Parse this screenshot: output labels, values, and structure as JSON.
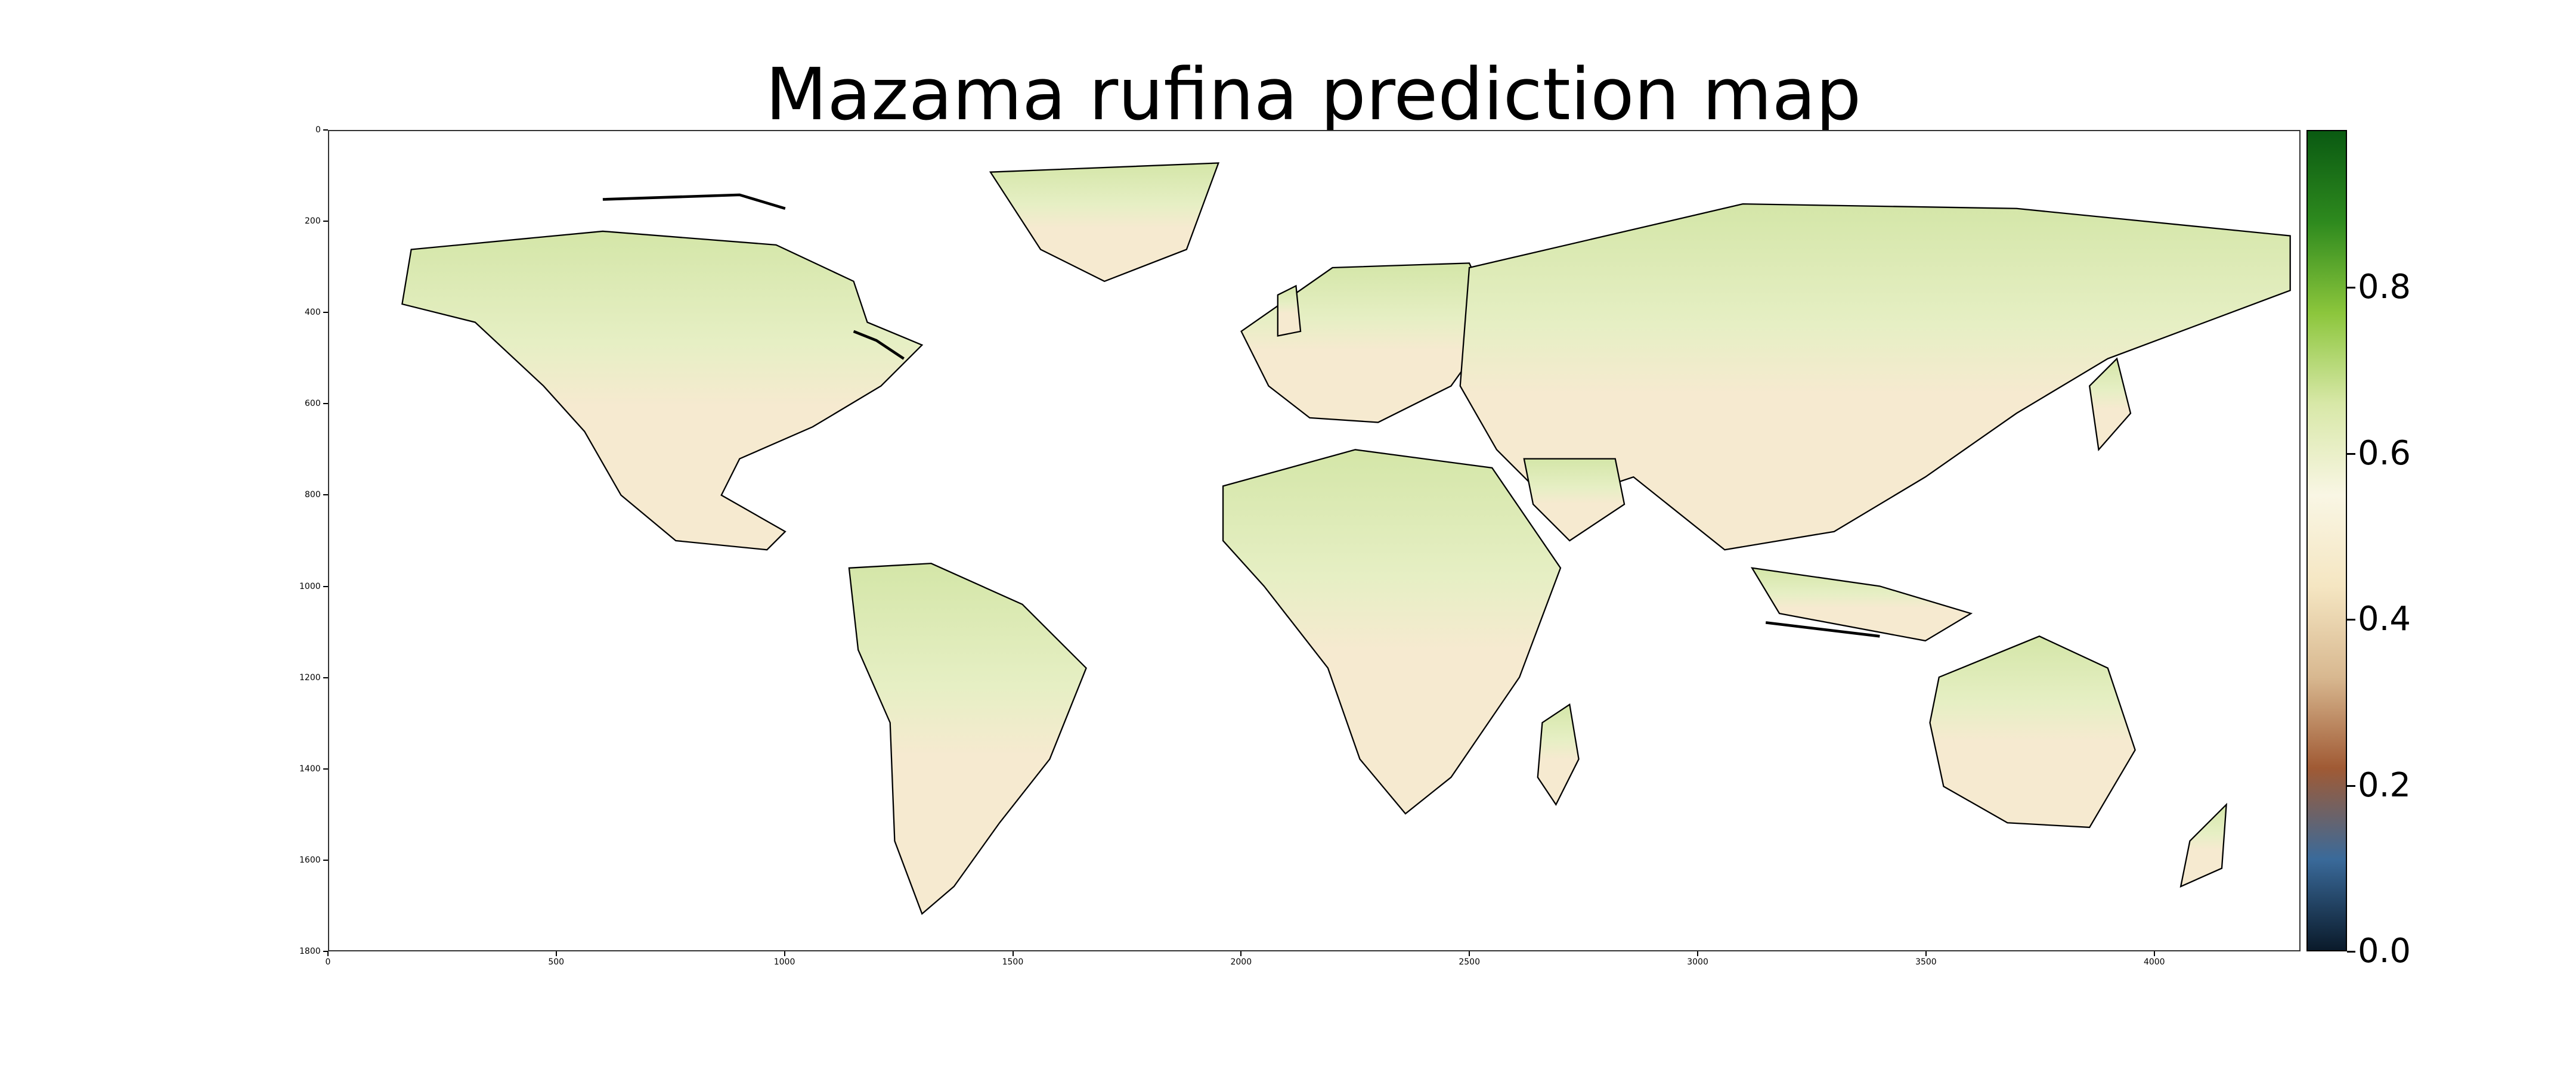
{
  "title": "Mazama rufina prediction map",
  "map": {
    "x_ticks": [
      "0",
      "500",
      "1000",
      "1500",
      "2000",
      "2500",
      "3000",
      "3500",
      "4000"
    ],
    "y_ticks": [
      "0",
      "200",
      "400",
      "600",
      "800",
      "1000",
      "1200",
      "1400",
      "1600",
      "1800"
    ],
    "x_range": [
      0,
      4320
    ],
    "y_range": [
      0,
      1800
    ],
    "land_color": "#f6ead0",
    "coast_color": "#000000",
    "ocean_color": "#ffffff"
  },
  "colorbar": {
    "ticks": [
      "0.0",
      "0.2",
      "0.4",
      "0.6",
      "0.8"
    ],
    "tick_values": [
      0.0,
      0.2,
      0.4,
      0.6,
      0.8
    ],
    "range": [
      0.0,
      0.99
    ],
    "colors": [
      "#0a1a2a",
      "#3a6a9a",
      "#a05a34",
      "#d8b890",
      "#f5e6c2",
      "#f9f6e4",
      "#d8e8a8",
      "#8cc63c",
      "#2e8a1e",
      "#0a5a12"
    ]
  }
}
